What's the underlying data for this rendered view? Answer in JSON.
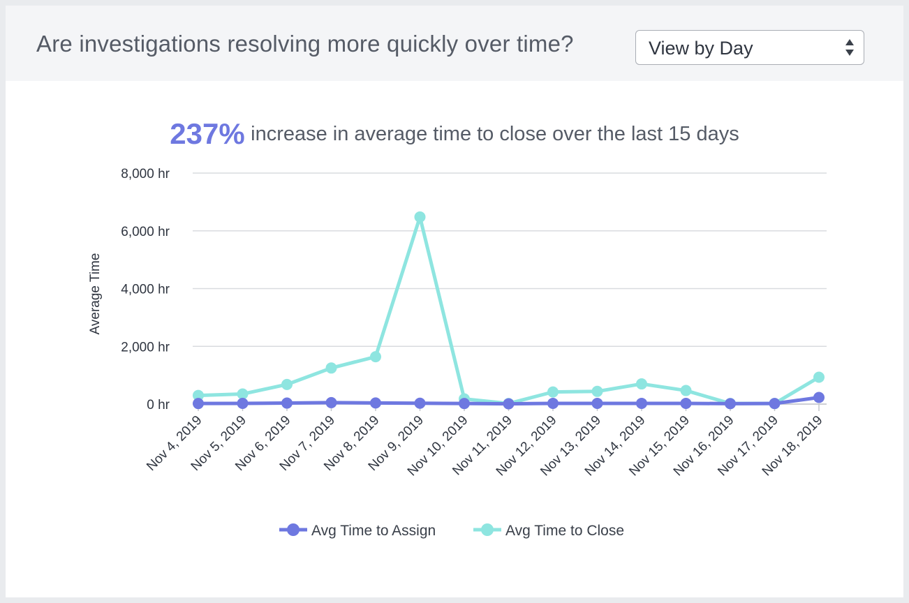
{
  "header": {
    "question": "Are investigations resolving more quickly over time?",
    "view_select": {
      "value": "View by Day"
    }
  },
  "summary": {
    "percent": "237%",
    "text": "increase in average time to close over the last 15 days"
  },
  "colors": {
    "assign": "#6e78e0",
    "close": "#8ee5e0",
    "grid": "#d9dbdf",
    "accent": "#6e78e0"
  },
  "chart_data": {
    "type": "line",
    "x": [
      "Nov 4, 2019",
      "Nov 5, 2019",
      "Nov 6, 2019",
      "Nov 7, 2019",
      "Nov 8, 2019",
      "Nov 9, 2019",
      "Nov 10, 2019",
      "Nov 11, 2019",
      "Nov 12, 2019",
      "Nov 13, 2019",
      "Nov 14, 2019",
      "Nov 15, 2019",
      "Nov 16, 2019",
      "Nov 17, 2019",
      "Nov 18, 2019"
    ],
    "series": [
      {
        "name": "Avg Time to Assign",
        "values": [
          20,
          25,
          35,
          50,
          40,
          30,
          20,
          10,
          25,
          25,
          25,
          25,
          15,
          20,
          230
        ]
      },
      {
        "name": "Avg Time to Close",
        "values": [
          300,
          350,
          680,
          1250,
          1640,
          6480,
          180,
          20,
          420,
          440,
          700,
          470,
          20,
          20,
          930
        ]
      }
    ],
    "ylabel": "Average Time",
    "ylim": [
      0,
      8000
    ],
    "yticks": [
      {
        "value": 0,
        "label": "0 hr"
      },
      {
        "value": 2000,
        "label": "2,000 hr"
      },
      {
        "value": 4000,
        "label": "4,000 hr"
      },
      {
        "value": 6000,
        "label": "6,000 hr"
      },
      {
        "value": 8000,
        "label": "8,000 hr"
      }
    ],
    "grid": true,
    "legend": "bottom-center"
  }
}
